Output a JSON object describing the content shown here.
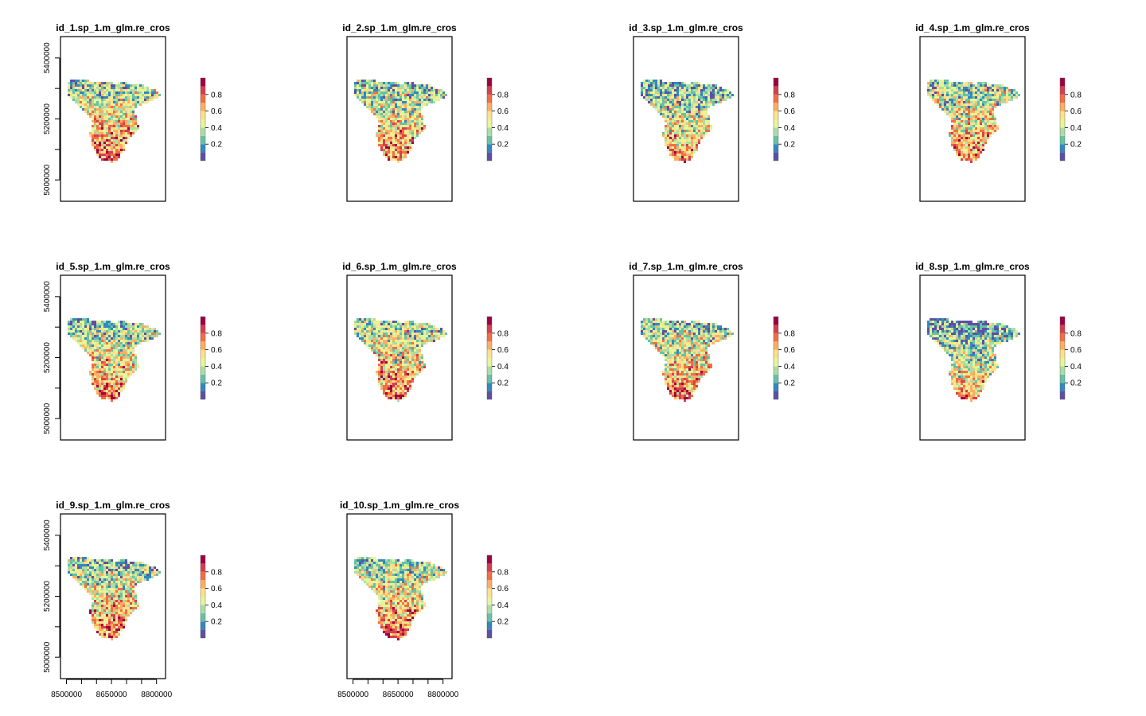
{
  "chart_data": {
    "type": "heatmap",
    "layout": {
      "rows": 3,
      "cols": 4
    },
    "x_axis": {
      "range": [
        8480000,
        8830000
      ],
      "ticks": [
        8500000,
        8550000,
        8600000,
        8650000,
        8700000,
        8750000,
        8800000
      ],
      "tick_labels": [
        "8500000",
        "8650000",
        "8800000"
      ]
    },
    "y_axis": {
      "range": [
        4930000,
        5470000
      ],
      "ticks": [
        5000000,
        5100000,
        5200000,
        5300000,
        5400000
      ],
      "tick_labels": [
        "5000000",
        "5200000",
        "5400000"
      ]
    },
    "colorbar": {
      "range": [
        0,
        1
      ],
      "ticks": [
        0.2,
        0.4,
        0.6,
        0.8
      ],
      "tick_labels": [
        "0.2",
        "0.4",
        "0.6",
        "0.8"
      ],
      "colors": [
        "#5E4FA2",
        "#3288BD",
        "#66C2A5",
        "#ABDDA4",
        "#E6F598",
        "#FEE08B",
        "#FDAE61",
        "#F46D43",
        "#D53E4F",
        "#9E0142"
      ]
    },
    "panels": [
      {
        "title": "id_1.sp_1.m_glm.re_cros",
        "north_level": 0.28,
        "south_level": 0.78
      },
      {
        "title": "id_2.sp_1.m_glm.re_cros",
        "north_level": 0.26,
        "south_level": 0.76
      },
      {
        "title": "id_3.sp_1.m_glm.re_cros",
        "north_level": 0.18,
        "south_level": 0.72
      },
      {
        "title": "id_4.sp_1.m_glm.re_cros",
        "north_level": 0.28,
        "south_level": 0.74
      },
      {
        "title": "id_5.sp_1.m_glm.re_cros",
        "north_level": 0.25,
        "south_level": 0.78
      },
      {
        "title": "id_6.sp_1.m_glm.re_cros",
        "north_level": 0.3,
        "south_level": 0.76
      },
      {
        "title": "id_7.sp_1.m_glm.re_cros",
        "north_level": 0.27,
        "south_level": 0.76
      },
      {
        "title": "id_8.sp_1.m_glm.re_cros",
        "north_level": 0.12,
        "south_level": 0.7
      },
      {
        "title": "id_9.sp_1.m_glm.re_cros",
        "north_level": 0.25,
        "south_level": 0.78
      },
      {
        "title": "id_10.sp_1.m_glm.re_cros",
        "north_level": 0.28,
        "south_level": 0.78
      }
    ]
  }
}
